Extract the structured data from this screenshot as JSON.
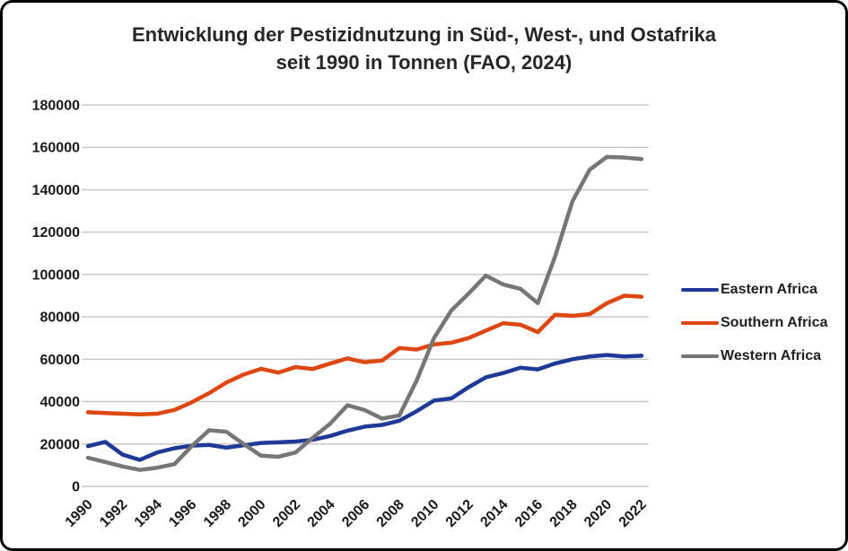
{
  "frame": {
    "border_color": "#000000",
    "background": "#ffffff"
  },
  "title": {
    "line1": "Entwicklung der Pestizidnutzung in Süd-, West-, und Ostafrika",
    "line2": "seit 1990 in Tonnen (FAO, 2024)"
  },
  "chart_data": {
    "type": "line",
    "title": "Entwicklung der Pestizidnutzung in Süd-, West-, und Ostafrika seit 1990 in Tonnen (FAO, 2024)",
    "xlabel": "",
    "ylabel": "",
    "x": [
      1990,
      1991,
      1992,
      1993,
      1994,
      1995,
      1996,
      1997,
      1998,
      1999,
      2000,
      2001,
      2002,
      2003,
      2004,
      2005,
      2006,
      2007,
      2008,
      2009,
      2010,
      2011,
      2012,
      2013,
      2014,
      2015,
      2016,
      2017,
      2018,
      2019,
      2020,
      2021,
      2022
    ],
    "x_tick_labels": [
      "1990",
      "1992",
      "1994",
      "1996",
      "1998",
      "2000",
      "2002",
      "2004",
      "2006",
      "2008",
      "2010",
      "2012",
      "2014",
      "2016",
      "2018",
      "2020",
      "2022"
    ],
    "y_ticks": [
      0,
      20000,
      40000,
      60000,
      80000,
      100000,
      120000,
      140000,
      160000,
      180000
    ],
    "ylim": [
      0,
      180000
    ],
    "grid": "horizontal",
    "gridline_color": "#c9c9c9",
    "tick_label_color": "#1a1a1a",
    "legend_position": "right",
    "series": [
      {
        "name": "Eastern Africa",
        "color": "#1e3a96",
        "values": [
          19000,
          21000,
          15000,
          12500,
          16000,
          18000,
          19200,
          19600,
          18300,
          19400,
          20500,
          20800,
          21200,
          22000,
          23800,
          26300,
          28200,
          29000,
          31000,
          35500,
          40500,
          41500,
          46800,
          51500,
          53500,
          56000,
          55200,
          58000,
          60000,
          61300,
          62000,
          61300,
          61700
        ]
      },
      {
        "name": "Southern Africa",
        "color": "#de4810",
        "values": [
          35000,
          34600,
          34300,
          34000,
          34300,
          36100,
          39700,
          44000,
          49000,
          52800,
          55500,
          53700,
          56300,
          55400,
          58000,
          60400,
          58600,
          59400,
          65300,
          64600,
          67000,
          67800,
          70000,
          73500,
          77000,
          76300,
          72800,
          81000,
          80500,
          81300,
          86500,
          90000,
          89500
        ]
      },
      {
        "name": "Western Africa",
        "color": "#767676",
        "values": [
          13500,
          11500,
          9400,
          7800,
          8800,
          10500,
          19000,
          26500,
          25800,
          20000,
          14500,
          14000,
          16000,
          23000,
          29600,
          38300,
          36000,
          32000,
          33500,
          50000,
          70000,
          83000,
          91000,
          99500,
          95300,
          93200,
          86500,
          108500,
          134500,
          149500,
          155500,
          155200,
          154500
        ]
      }
    ]
  }
}
